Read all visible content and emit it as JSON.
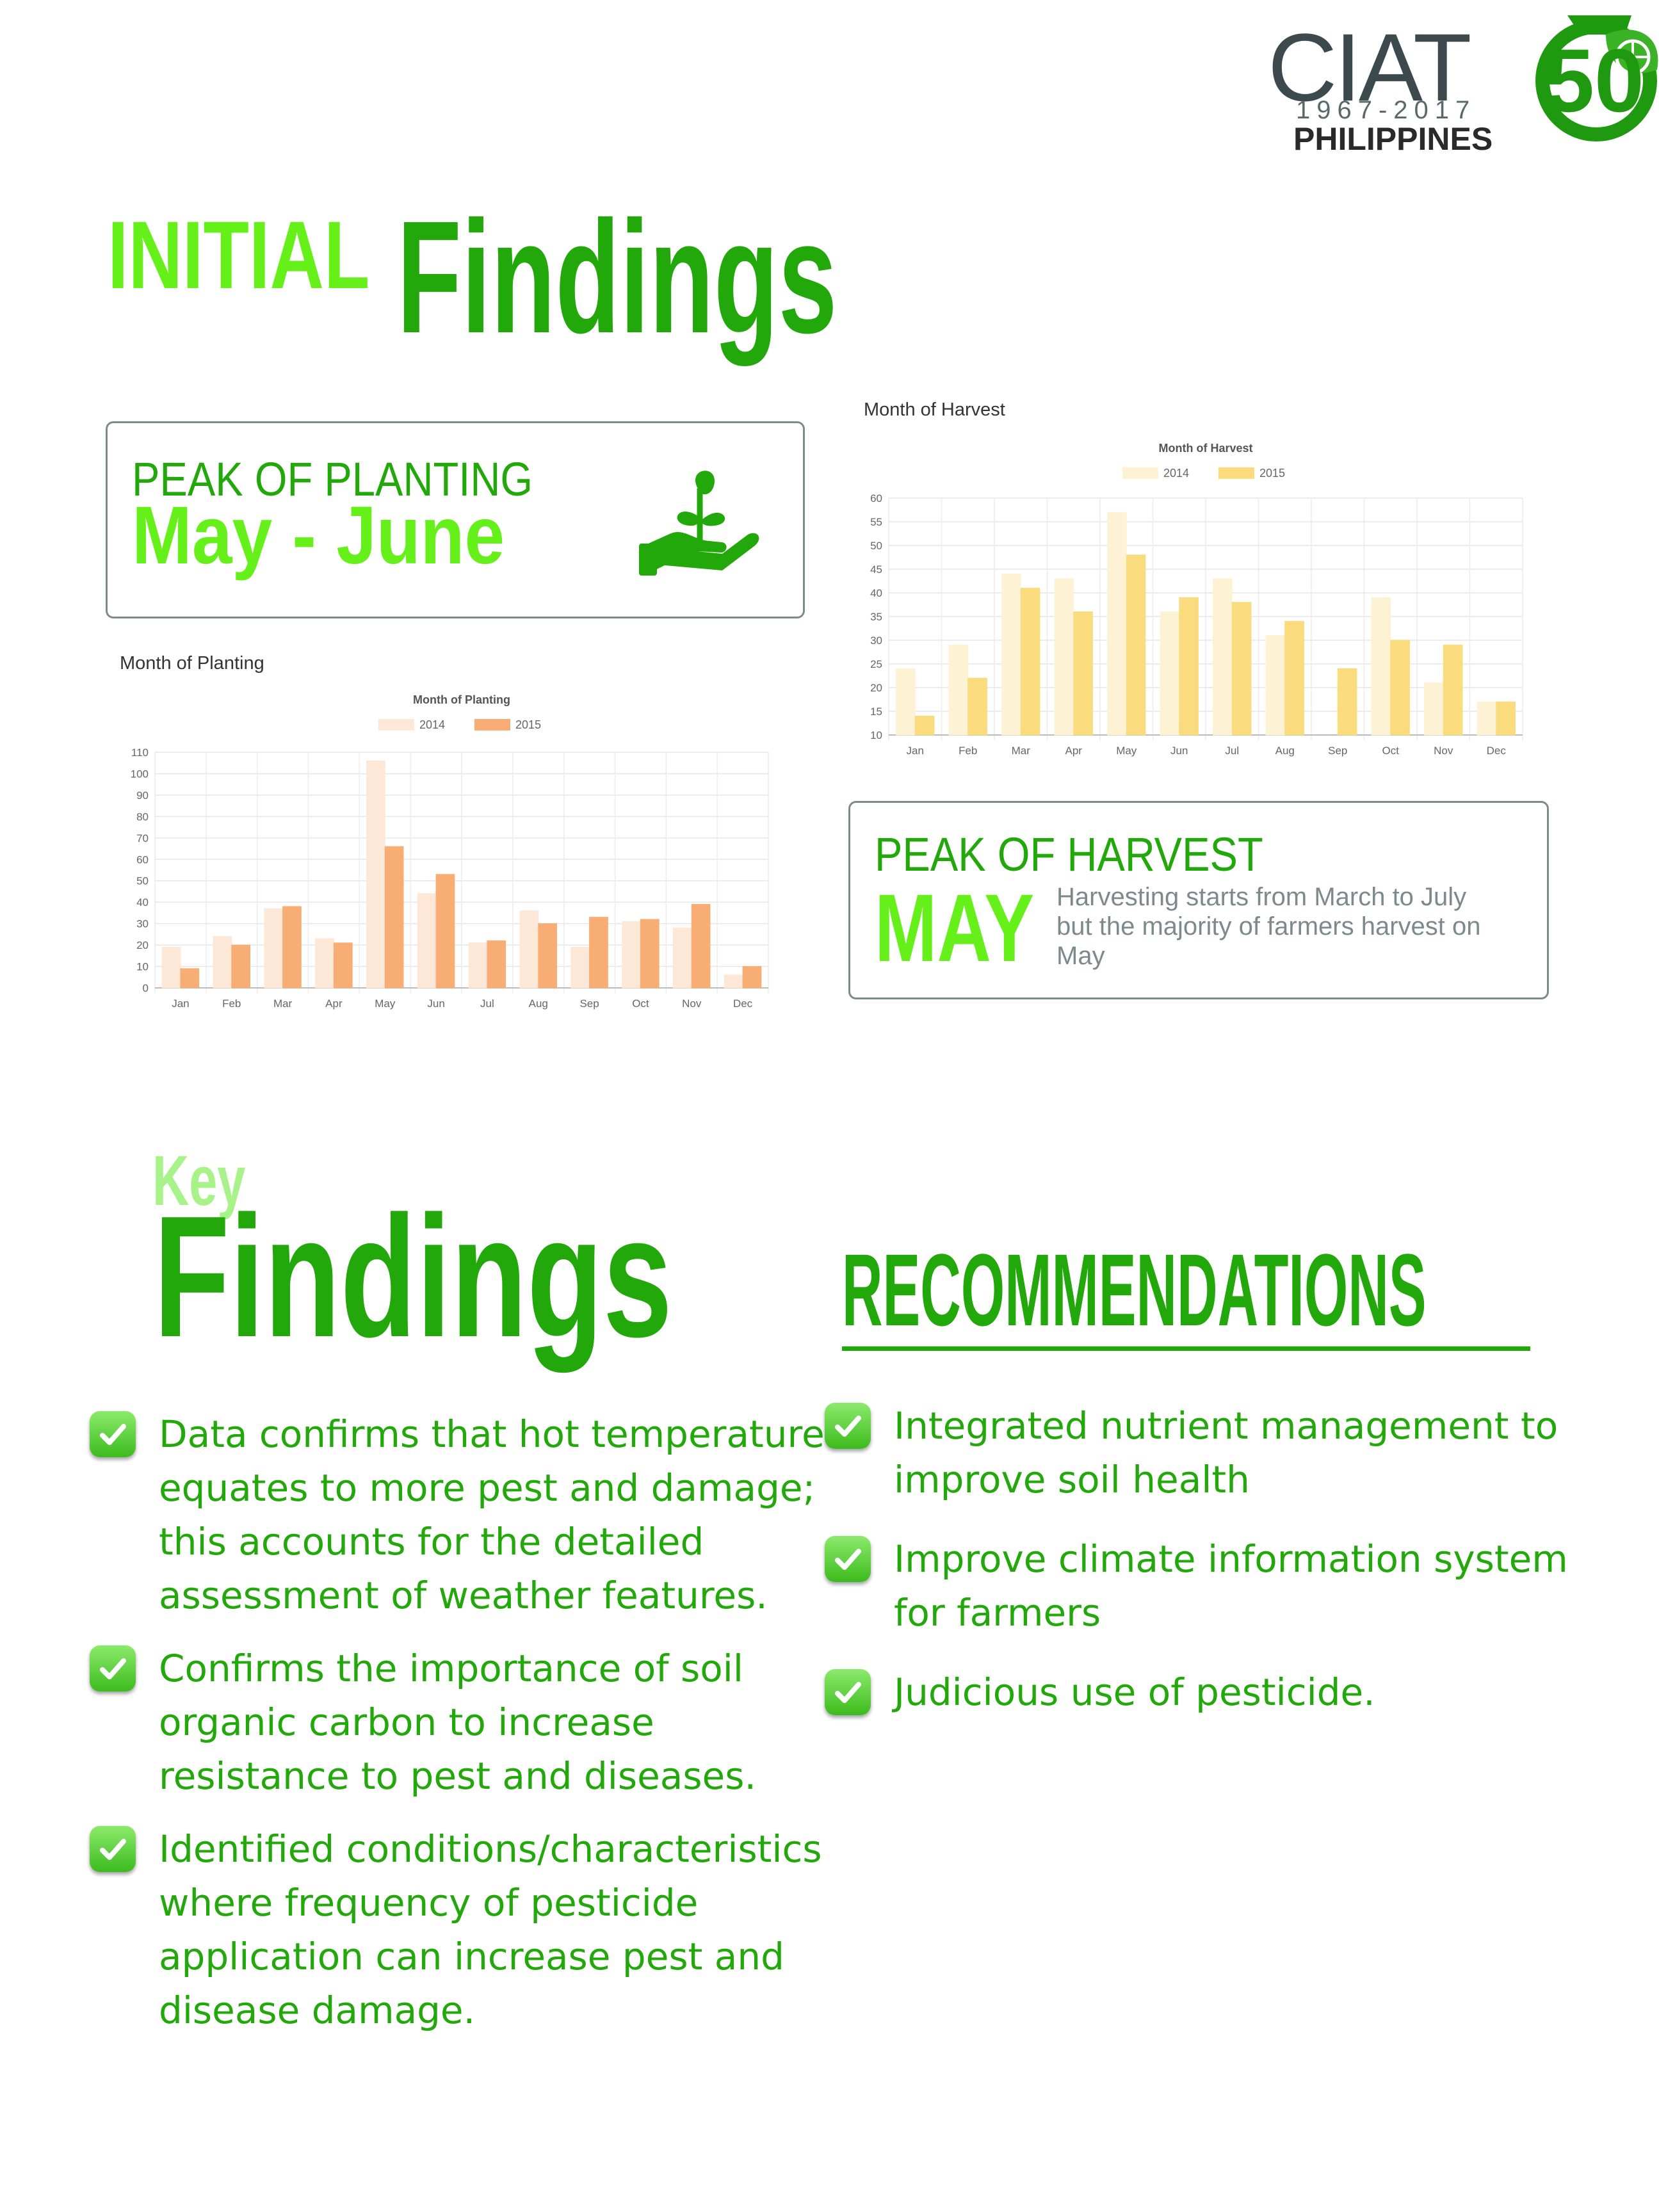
{
  "logo": {
    "brand": "CIAT",
    "number": "50",
    "years": "1967-2017",
    "country": "PHILIPPINES"
  },
  "initial_findings": {
    "label": "INITIAL",
    "title": "Findings"
  },
  "planting_box": {
    "peak_label": "PEAK OF PLANTING",
    "peak_value": "May - June",
    "icon": "plant-in-hand-icon"
  },
  "harvest_box": {
    "peak_label": "PEAK OF HARVEST",
    "peak_value": "MAY",
    "note": "Harvesting starts from March to July but the majority of farmers harvest on May"
  },
  "planting_chart_caption": "Month of Planting",
  "harvest_chart_caption": "Month of Harvest",
  "chart_data": [
    {
      "type": "bar",
      "title": "Month of Planting",
      "categories": [
        "Jan",
        "Feb",
        "Mar",
        "Apr",
        "May",
        "Jun",
        "Jul",
        "Aug",
        "Sep",
        "Oct",
        "Nov",
        "Dec"
      ],
      "series": [
        {
          "name": "2014",
          "values": [
            19,
            24,
            37,
            23,
            106,
            44,
            21,
            36,
            19,
            31,
            28,
            6
          ],
          "color": "#fde7d6"
        },
        {
          "name": "2015",
          "values": [
            9,
            20,
            38,
            21,
            66,
            53,
            22,
            30,
            33,
            32,
            39,
            10
          ],
          "color": "#f8ad74"
        }
      ],
      "ylim": [
        0,
        110
      ],
      "yticks": [
        0,
        10,
        20,
        30,
        40,
        50,
        60,
        70,
        80,
        90,
        100,
        110
      ],
      "legend": "top",
      "grid": true
    },
    {
      "type": "bar",
      "title": "Month of Harvest",
      "categories": [
        "Jan",
        "Feb",
        "Mar",
        "Apr",
        "May",
        "Jun",
        "Jul",
        "Aug",
        "Sep",
        "Oct",
        "Nov",
        "Dec"
      ],
      "series": [
        {
          "name": "2014",
          "values": [
            24,
            29,
            44,
            43,
            57,
            36,
            43,
            31,
            9,
            39,
            21,
            17
          ],
          "color": "#fdf3d4"
        },
        {
          "name": "2015",
          "values": [
            14,
            22,
            41,
            36,
            48,
            39,
            38,
            34,
            24,
            30,
            29,
            17
          ],
          "color": "#fadc7f"
        }
      ],
      "ylim": [
        10,
        60
      ],
      "yticks": [
        10,
        15,
        20,
        25,
        30,
        35,
        40,
        45,
        50,
        55,
        60
      ],
      "legend": "top",
      "grid": true
    }
  ],
  "key_findings": {
    "label": "Key",
    "title": "Findings",
    "items": [
      "Data confirms that hot temperature equates to more pest and damage; this accounts for the detailed assessment of weather features.",
      "Confirms the importance of soil organic carbon to increase resistance to pest and diseases.",
      "Identified conditions/characteristics where frequency of pesticide application can increase pest and disease damage."
    ]
  },
  "recommendations": {
    "title": "RECOMMENDATIONS",
    "items": [
      "Integrated nutrient management to improve soil health",
      "Improve climate information system for farmers",
      "Judicious use of pesticide."
    ]
  },
  "colors": {
    "brand_green": "#22a80a",
    "bright_green": "#66f01a",
    "light_green": "#a8f28a",
    "border_gray": "#7d8a8c"
  }
}
